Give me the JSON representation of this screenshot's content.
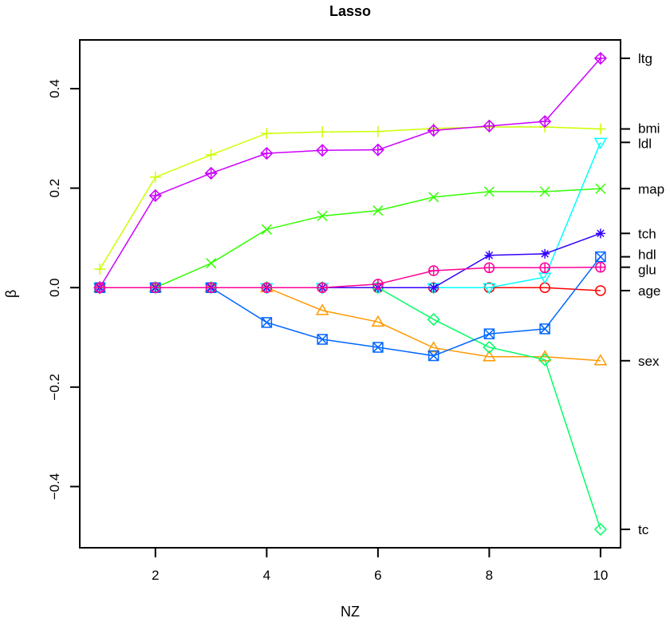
{
  "chart_data": {
    "type": "line",
    "title": "Lasso",
    "xlabel": "NZ",
    "ylabel": "β",
    "xlim": [
      0.64,
      10.36
    ],
    "ylim": [
      -0.523,
      0.498
    ],
    "xticks": [
      2,
      4,
      6,
      8,
      10
    ],
    "yticks": [
      -0.4,
      -0.2,
      0.0,
      0.2,
      0.4
    ],
    "ytick_labels": [
      "−0.4",
      "−0.2",
      "0.0",
      "0.2",
      "0.4"
    ],
    "grid": false,
    "x": [
      1,
      2,
      3,
      4,
      5,
      6,
      7,
      8,
      9,
      10
    ],
    "series": [
      {
        "name": "age",
        "color": "#FF0000",
        "marker": "circle",
        "values": [
          0,
          0,
          0,
          0,
          0,
          0,
          0,
          0,
          0,
          -0.006
        ]
      },
      {
        "name": "sex",
        "color": "#FF9900",
        "marker": "triangle-up",
        "values": [
          0,
          0,
          0,
          0,
          -0.046,
          -0.069,
          -0.121,
          -0.139,
          -0.139,
          -0.147
        ]
      },
      {
        "name": "bmi",
        "color": "#CCFF00",
        "marker": "plus",
        "values": [
          0.037,
          0.222,
          0.267,
          0.31,
          0.313,
          0.314,
          0.32,
          0.323,
          0.323,
          0.319
        ]
      },
      {
        "name": "map",
        "color": "#33FF00",
        "marker": "cross",
        "values": [
          0,
          0,
          0.049,
          0.117,
          0.144,
          0.155,
          0.182,
          0.193,
          0.193,
          0.199
        ]
      },
      {
        "name": "tc",
        "color": "#00FF66",
        "marker": "diamond",
        "values": [
          0,
          0,
          0,
          0,
          0,
          0,
          -0.064,
          -0.12,
          -0.145,
          -0.486
        ]
      },
      {
        "name": "ldl",
        "color": "#00FFFF",
        "marker": "triangle-down",
        "values": [
          0,
          0,
          0,
          0,
          0,
          0,
          0,
          0,
          0.021,
          0.292
        ]
      },
      {
        "name": "hdl",
        "color": "#0066FF",
        "marker": "square-x",
        "values": [
          0,
          0,
          0,
          -0.07,
          -0.104,
          -0.12,
          -0.137,
          -0.093,
          -0.083,
          0.062
        ]
      },
      {
        "name": "tch",
        "color": "#3300FF",
        "marker": "asterisk",
        "values": [
          0,
          0,
          0,
          0,
          0,
          0,
          0,
          0.065,
          0.068,
          0.109
        ]
      },
      {
        "name": "ltg",
        "color": "#CC00FF",
        "marker": "diamond-plus",
        "values": [
          0,
          0.185,
          0.23,
          0.27,
          0.276,
          0.277,
          0.316,
          0.325,
          0.334,
          0.461
        ]
      },
      {
        "name": "glu",
        "color": "#FF0099",
        "marker": "circle-plus",
        "values": [
          0,
          0,
          0,
          0,
          0,
          0.007,
          0.034,
          0.04,
          0.04,
          0.041
        ]
      }
    ],
    "right_axis_labels": [
      "ltg",
      "bmi",
      "ldl",
      "map",
      "tch",
      "hdl",
      "glu",
      "age",
      "sex",
      "tc"
    ]
  }
}
